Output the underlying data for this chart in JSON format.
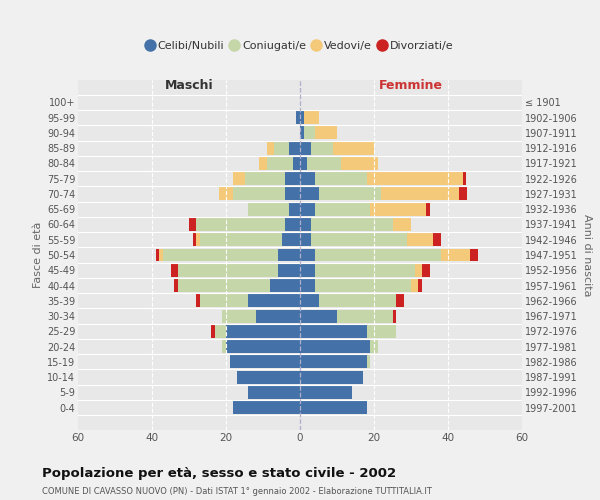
{
  "age_groups": [
    "100+",
    "95-99",
    "90-94",
    "85-89",
    "80-84",
    "75-79",
    "70-74",
    "65-69",
    "60-64",
    "55-59",
    "50-54",
    "45-49",
    "40-44",
    "35-39",
    "30-34",
    "25-29",
    "20-24",
    "15-19",
    "10-14",
    "5-9",
    "0-4"
  ],
  "birth_years": [
    "≤ 1901",
    "1902-1906",
    "1907-1911",
    "1912-1916",
    "1917-1921",
    "1922-1926",
    "1927-1931",
    "1932-1936",
    "1937-1941",
    "1942-1946",
    "1947-1951",
    "1952-1956",
    "1957-1961",
    "1962-1966",
    "1967-1971",
    "1972-1976",
    "1977-1981",
    "1982-1986",
    "1987-1991",
    "1992-1996",
    "1997-2001"
  ],
  "colors": {
    "celibi": "#4472a8",
    "coniugati": "#c5d6a8",
    "vedovi": "#f5c97a",
    "divorziati": "#cc2222"
  },
  "maschi": {
    "celibi": [
      0,
      1,
      0,
      3,
      2,
      4,
      4,
      3,
      4,
      5,
      6,
      6,
      8,
      14,
      12,
      20,
      20,
      19,
      17,
      14,
      18
    ],
    "coniugati": [
      0,
      0,
      0,
      4,
      7,
      11,
      14,
      11,
      24,
      22,
      31,
      27,
      25,
      13,
      9,
      3,
      1,
      0,
      0,
      0,
      0
    ],
    "vedovi": [
      0,
      0,
      0,
      2,
      2,
      3,
      4,
      0,
      0,
      1,
      1,
      0,
      0,
      0,
      0,
      0,
      0,
      0,
      0,
      0,
      0
    ],
    "divorziati": [
      0,
      0,
      0,
      0,
      0,
      0,
      0,
      0,
      2,
      1,
      1,
      2,
      1,
      1,
      0,
      1,
      0,
      0,
      0,
      0,
      0
    ]
  },
  "femmine": {
    "celibi": [
      0,
      1,
      1,
      3,
      2,
      4,
      5,
      4,
      3,
      3,
      4,
      4,
      4,
      5,
      10,
      18,
      19,
      18,
      17,
      14,
      18
    ],
    "coniugati": [
      0,
      0,
      3,
      6,
      9,
      14,
      17,
      15,
      22,
      26,
      34,
      27,
      26,
      21,
      15,
      8,
      2,
      1,
      0,
      0,
      0
    ],
    "vedovi": [
      0,
      4,
      6,
      11,
      10,
      26,
      21,
      15,
      5,
      7,
      8,
      2,
      2,
      0,
      0,
      0,
      0,
      0,
      0,
      0,
      0
    ],
    "divorziati": [
      0,
      0,
      0,
      0,
      0,
      1,
      2,
      1,
      0,
      2,
      2,
      2,
      1,
      2,
      1,
      0,
      0,
      0,
      0,
      0,
      0
    ]
  },
  "xlim": 60,
  "title": "Popolazione per età, sesso e stato civile - 2002",
  "subtitle": "COMUNE DI CAVASSO NUOVO (PN) - Dati ISTAT 1° gennaio 2002 - Elaborazione TUTTITALIA.IT",
  "xlabel_left": "Maschi",
  "xlabel_right": "Femmine",
  "ylabel_left": "Fasce di età",
  "ylabel_right": "Anni di nascita",
  "legend_labels": [
    "Celibi/Nubili",
    "Coniugati/e",
    "Vedovi/e",
    "Divorziati/e"
  ],
  "background_color": "#f0f0f0",
  "plot_bg_color": "#e8e8e8"
}
